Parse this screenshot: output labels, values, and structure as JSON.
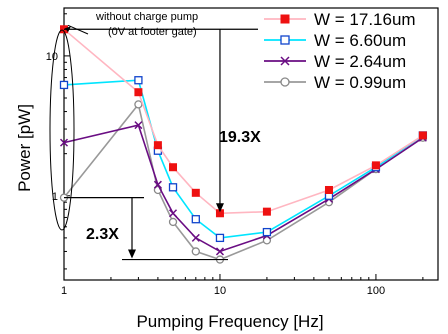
{
  "chart_data": {
    "type": "line",
    "xlabel": "Pumping Frequency [Hz]",
    "ylabel": "Power [pW]",
    "x_scale": "log",
    "y_scale": "log",
    "xlim": [
      1,
      250
    ],
    "ylim": [
      0.25,
      22
    ],
    "x_ticks": [
      1,
      10,
      100
    ],
    "x_tick_labels": [
      "1",
      "10",
      "100"
    ],
    "y_ticks": [
      1,
      10
    ],
    "y_tick_labels": [
      "1",
      "10"
    ],
    "legend_position": "top-right",
    "series": [
      {
        "name": "W = 17.16um",
        "color": "#ffb6c1",
        "marker_color": "#ee1111",
        "marker": "filled-square",
        "x": [
          1,
          3,
          4,
          5,
          7,
          10,
          20,
          50,
          100,
          200
        ],
        "y": [
          15.5,
          5.5,
          2.3,
          1.6,
          1.05,
          0.75,
          0.77,
          1.1,
          1.65,
          2.7
        ]
      },
      {
        "name": "W = 6.60um",
        "color": "#00e5ff",
        "marker_color": "#1144cc",
        "marker": "open-square",
        "x": [
          1,
          3,
          4,
          5,
          7,
          10,
          20,
          50,
          100,
          200
        ],
        "y": [
          6.2,
          6.7,
          2.1,
          1.15,
          0.68,
          0.5,
          0.55,
          1.0,
          1.6,
          2.7
        ]
      },
      {
        "name": "W = 2.64um",
        "color": "#6a0d83",
        "marker_color": "#6a0d83",
        "marker": "x",
        "x": [
          1,
          3,
          4,
          5,
          7,
          10,
          20,
          50,
          100,
          200
        ],
        "y": [
          2.4,
          3.2,
          1.2,
          0.75,
          0.5,
          0.4,
          0.52,
          0.95,
          1.55,
          2.6
        ]
      },
      {
        "name": "W = 0.99um",
        "color": "#999999",
        "marker_color": "#888888",
        "marker": "open-circle",
        "x": [
          1,
          3,
          4,
          5,
          7,
          10,
          20,
          50,
          100,
          200
        ],
        "y": [
          0.97,
          4.5,
          1.1,
          0.65,
          0.4,
          0.35,
          0.48,
          0.9,
          1.55,
          2.6
        ]
      }
    ],
    "annotations": {
      "without_pump_line1": "without charge pump",
      "without_pump_line2": "(0V at footer gate)",
      "ratio_big": "19.3X",
      "ratio_small": "2.3X"
    }
  }
}
